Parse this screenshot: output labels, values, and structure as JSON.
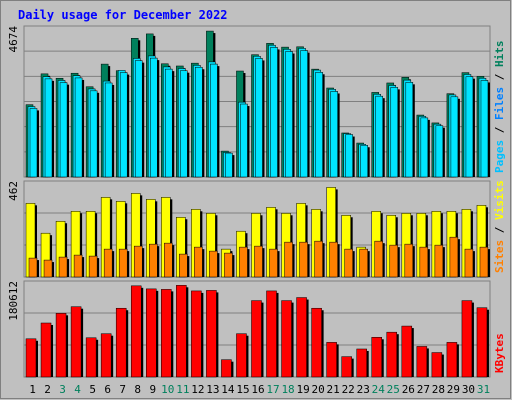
{
  "chart_data": {
    "type": "bar",
    "title": "Daily usage for December 2022",
    "categories": [
      "1",
      "2",
      "3",
      "4",
      "5",
      "6",
      "7",
      "8",
      "9",
      "10",
      "11",
      "12",
      "13",
      "14",
      "15",
      "16",
      "17",
      "18",
      "19",
      "20",
      "21",
      "22",
      "23",
      "24",
      "25",
      "26",
      "27",
      "28",
      "29",
      "30",
      "31"
    ],
    "weekend_days": [
      "3",
      "4",
      "10",
      "11",
      "17",
      "18",
      "24",
      "25",
      "31"
    ],
    "panels": [
      {
        "name": "hits-files-pages",
        "ylabel_parts": [
          "Pages",
          "Files",
          "Hits"
        ],
        "ymax_label": "4674",
        "ylim": [
          0,
          4674
        ],
        "series": [
          {
            "name": "Hits",
            "color": "#00805c",
            "values": [
              2300,
              3280,
              3140,
              3300,
              2870,
              3590,
              3380,
              4410,
              4550,
              3600,
              3530,
              3620,
              4640,
              824,
              3370,
              3890,
              4250,
              4130,
              4140,
              3430,
              2830,
              1400,
              1080,
              2690,
              2990,
              3170,
              1970,
              1720,
              2650,
              3320,
              3200
            ]
          },
          {
            "name": "Files",
            "color": "#00e4ff",
            "values": [
              2240,
              3190,
              3070,
              3220,
              2800,
              3050,
              3390,
              3770,
              3850,
              3500,
              3450,
              3550,
              3660,
              780,
              2380,
              3840,
              4190,
              4060,
              4090,
              3400,
              2790,
              1380,
              1040,
              2630,
              2910,
              3080,
              1930,
              1680,
              2610,
              3260,
              3140
            ]
          },
          {
            "name": "Pages",
            "color": "#00e4ff",
            "values": [
              2180,
              3120,
              3000,
              3150,
              2740,
              2990,
              3320,
              3700,
              3780,
              3430,
              3380,
              3490,
              3590,
              760,
              2320,
              3770,
              4120,
              3990,
              4020,
              3330,
              2720,
              1350,
              1010,
              2570,
              2850,
              3010,
              1880,
              1630,
              2550,
              3190,
              3070
            ]
          }
        ]
      },
      {
        "name": "visits-sites",
        "ylabel_parts": [
          "Sites",
          "Visits"
        ],
        "ymax_label": "462",
        "ylim": [
          0,
          462
        ],
        "series": [
          {
            "name": "Visits",
            "color": "#ffff00",
            "values": [
              370,
              220,
              280,
              330,
              330,
              400,
              380,
              420,
              390,
              400,
              300,
              340,
              320,
              140,
              230,
              320,
              350,
              320,
              370,
              340,
              450,
              310,
              150,
              330,
              310,
              320,
              320,
              330,
              330,
              340,
              360
            ]
          },
          {
            "name": "Sites",
            "color": "#ff8000",
            "values": [
              95,
              85,
              100,
              110,
              105,
              140,
              140,
              155,
              165,
              170,
              115,
              150,
              130,
              120,
              150,
              155,
              140,
              175,
              175,
              180,
              175,
              140,
              140,
              180,
              160,
              165,
              150,
              160,
              200,
              140,
              150
            ]
          }
        ]
      },
      {
        "name": "kbytes",
        "ylabel_parts": [
          "KBytes"
        ],
        "ymax_label": "180612",
        "ylim": [
          0,
          180612
        ],
        "series": [
          {
            "name": "KBytes",
            "color": "#ff0000",
            "values": [
              75000,
              106000,
              125000,
              138000,
              77000,
              85000,
              135000,
              179000,
              173000,
              172000,
              180000,
              169000,
              170000,
              34000,
              85000,
              150000,
              169000,
              150000,
              156000,
              135000,
              68000,
              40000,
              55000,
              78000,
              88000,
              100000,
              60000,
              48000,
              68000,
              150000,
              136000
            ]
          }
        ]
      }
    ]
  }
}
